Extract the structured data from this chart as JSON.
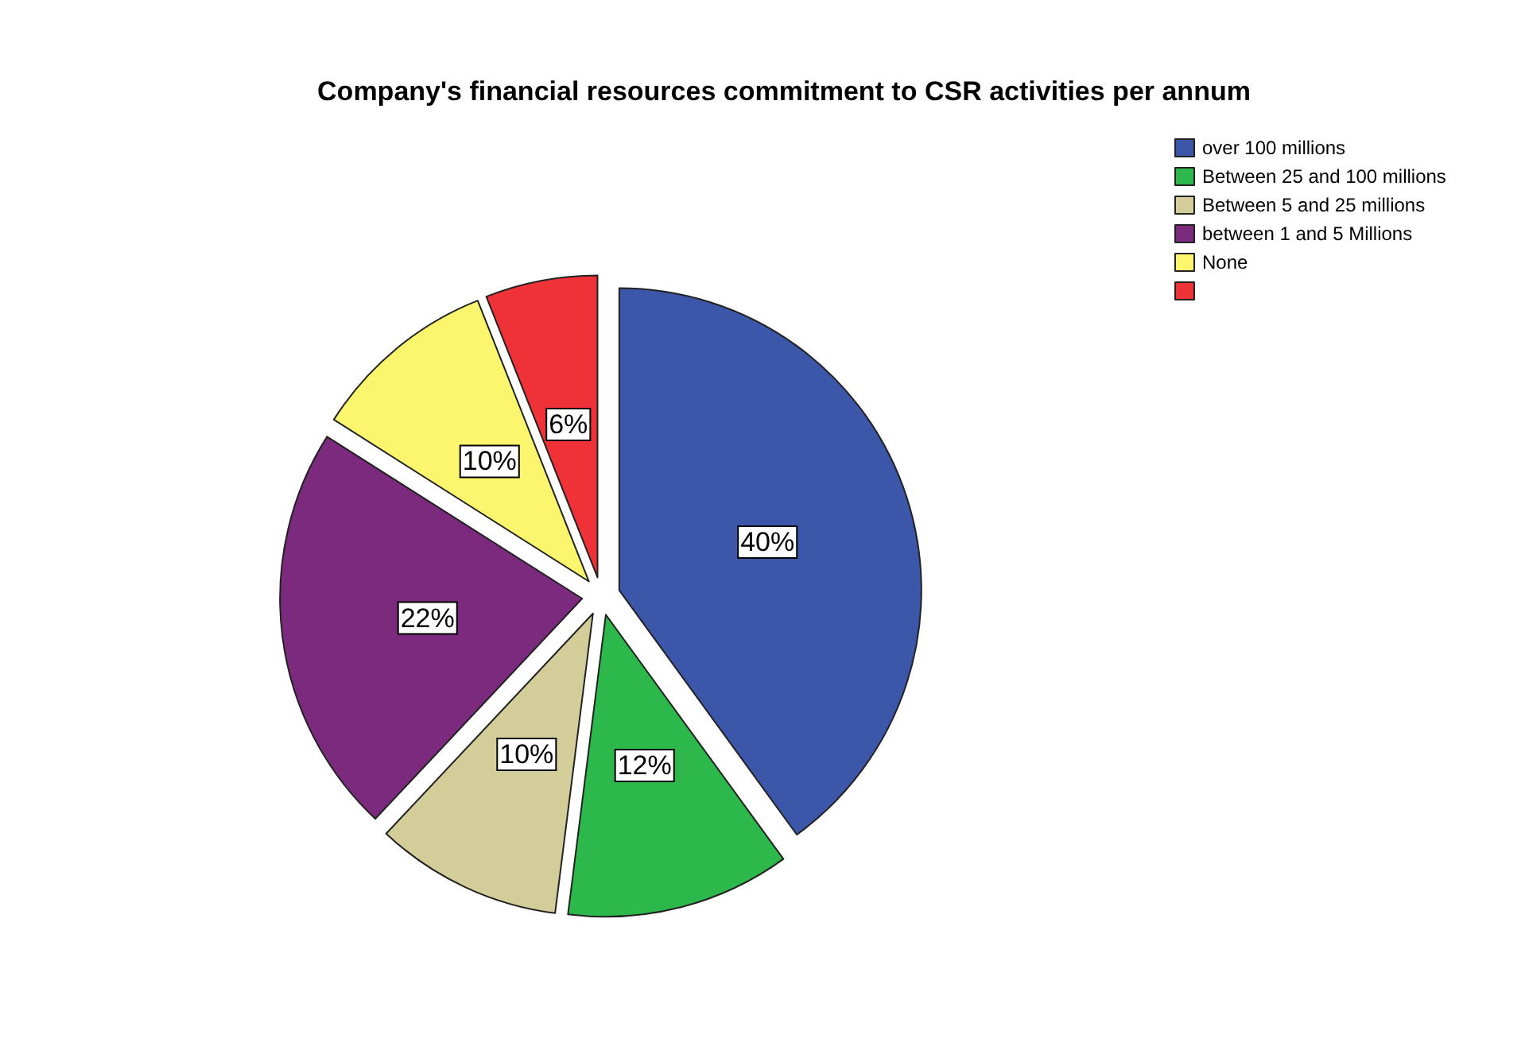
{
  "chart_data": {
    "type": "pie",
    "title": "Company's financial resources commitment to CSR activities per annum",
    "categories": [
      "over 100 millions",
      "Between 25 and 100 millions",
      "Between 5 and 25 millions",
      "between 1 and 5 Millions",
      "None",
      null
    ],
    "values": [
      40,
      12,
      10,
      22,
      10,
      6
    ],
    "colors": [
      "#3c56aa",
      "#2db84b",
      "#d3cd9a",
      "#7b2a7e",
      "#fbf66e",
      "#ee3237"
    ],
    "value_labels": [
      "40%",
      "12%",
      "10%",
      "22%",
      "10%",
      "6%"
    ],
    "legend": "top right"
  }
}
